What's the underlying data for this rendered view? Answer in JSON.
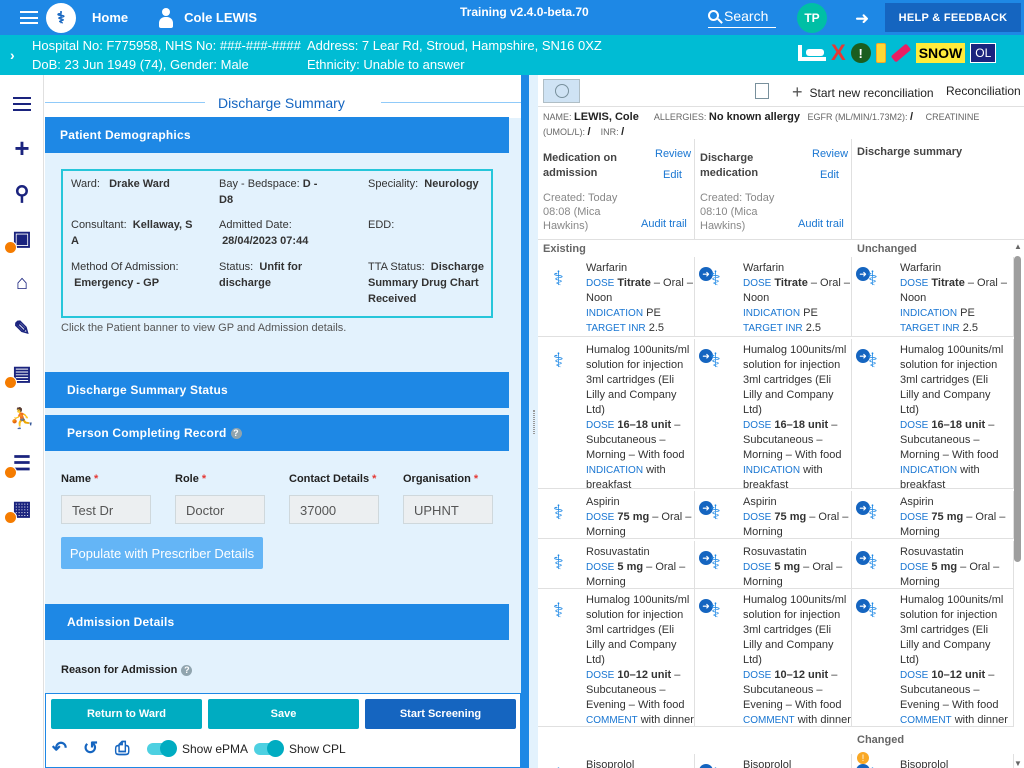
{
  "topbar": {
    "home_label": "Home",
    "patient_name": "Cole LEWIS",
    "version": "Training v2.4.0-beta.70",
    "search_label": "Search",
    "user_initials": "TP",
    "help_label": "HELP & FEEDBACK"
  },
  "banner": {
    "hospital_no": "Hospital No: F775958, NHS No: ###-###-####",
    "address": "Address: 7 Lear Rd, Stroud, Hampshire, SN16 0XZ",
    "dob": "DoB: 23 Jun 1949 (74), Gender: Male",
    "ethnicity": "Ethnicity: Unable to answer",
    "snow": "SNOW",
    "ol": "OL"
  },
  "left": {
    "title": "Discharge Summary",
    "demographics": {
      "heading": "Patient Demographics",
      "ward_label": "Ward:",
      "ward": "Drake Ward",
      "bay_label": "Bay - Bedspace:",
      "bay": "D - D8",
      "speciality_label": "Speciality:",
      "speciality": "Neurology",
      "consultant_label": "Consultant:",
      "consultant": "Kellaway, S A",
      "admitted_label": "Admitted Date:",
      "admitted": "28/04/2023 07:44",
      "edd_label": "EDD:",
      "method_label": "Method Of Admission:",
      "method": "Emergency - GP",
      "status_label": "Status:",
      "status": "Unfit for discharge",
      "tta_label": "TTA Status:",
      "tta": "Discharge Summary Drug Chart Received",
      "hint": "Click the Patient banner to view GP and Admission details."
    },
    "status_heading": "Discharge Summary Status",
    "person_heading": "Person Completing Record",
    "fields": {
      "name_label": "Name",
      "role_label": "Role",
      "contact_label": "Contact Details",
      "org_label": "Organisation",
      "name": "Test Dr",
      "role": "Doctor",
      "contact": "37000",
      "org": "UPHNT"
    },
    "populate_label": "Populate with Prescriber Details",
    "admission_heading": "Admission Details",
    "reason_label": "Reason for Admission"
  },
  "footer": {
    "return_label": "Return to Ward",
    "save_label": "Save",
    "screening_label": "Start Screening",
    "epma_label": "Show ePMA",
    "cpl_label": "Show CPL",
    "colors": {
      "return": "#00acc1",
      "save": "#00acc1",
      "screening": "#1565c0"
    }
  },
  "right": {
    "new_recon_label": "Start new reconciliation",
    "recon_status": "Reconciliation st",
    "patient_info": {
      "name_label": "NAME:",
      "name": "LEWIS, Cole",
      "allergies_label": "ALLERGIES:",
      "allergies": "No known allergy",
      "egfr_label": "EGFR (ML/MIN/1.73M2):",
      "egfr": "/",
      "creat_label": "CREATININE (UMOL/L):",
      "creat": "/",
      "inr_label": "INR:",
      "inr": "/"
    },
    "columns": [
      {
        "title": "Medication on admission",
        "review": "Review",
        "edit": "Edit",
        "created": "Created: Today 08:08 (Mica Hawkins)",
        "audit": "Audit trail"
      },
      {
        "title": "Discharge medication",
        "review": "Review",
        "edit": "Edit",
        "created": "Created: Today 08:10 (Mica Hawkins)",
        "audit": "Audit trail"
      },
      {
        "title": "Discharge summary"
      }
    ],
    "groups": {
      "existing": "Existing",
      "unchanged": "Unchanged",
      "changed": "Changed"
    },
    "meds": [
      {
        "name": "Warfarin",
        "dose_key": "DOSE",
        "dose_bold": "Titrate",
        "dose_rest": " – Oral – Noon",
        "extra_key": "INDICATION",
        "extra": "PE",
        "extra2_key": "TARGET INR",
        "extra2": "2.5"
      },
      {
        "name": "Humalog 100units/ml solution for injection 3ml cartridges (Eli Lilly and Company Ltd)",
        "dose_key": "DOSE",
        "dose_bold": "16–18 unit",
        "dose_rest": " – Subcutaneous – Morning – With food",
        "extra_key": "INDICATION",
        "extra": "with breakfast"
      },
      {
        "name": "Aspirin",
        "dose_key": "DOSE",
        "dose_bold": "75 mg",
        "dose_rest": " – Oral – Morning"
      },
      {
        "name": "Rosuvastatin",
        "dose_key": "DOSE",
        "dose_bold": "5 mg",
        "dose_rest": " – Oral – Morning"
      },
      {
        "name": "Humalog 100units/ml solution for injection 3ml cartridges (Eli Lilly and Company Ltd)",
        "dose_key": "DOSE",
        "dose_bold": "10–12 unit",
        "dose_rest": " – Subcutaneous – Evening – With food",
        "extra_key": "COMMENT",
        "extra": "with dinner"
      },
      {
        "name": "Bisoprolol"
      }
    ]
  }
}
